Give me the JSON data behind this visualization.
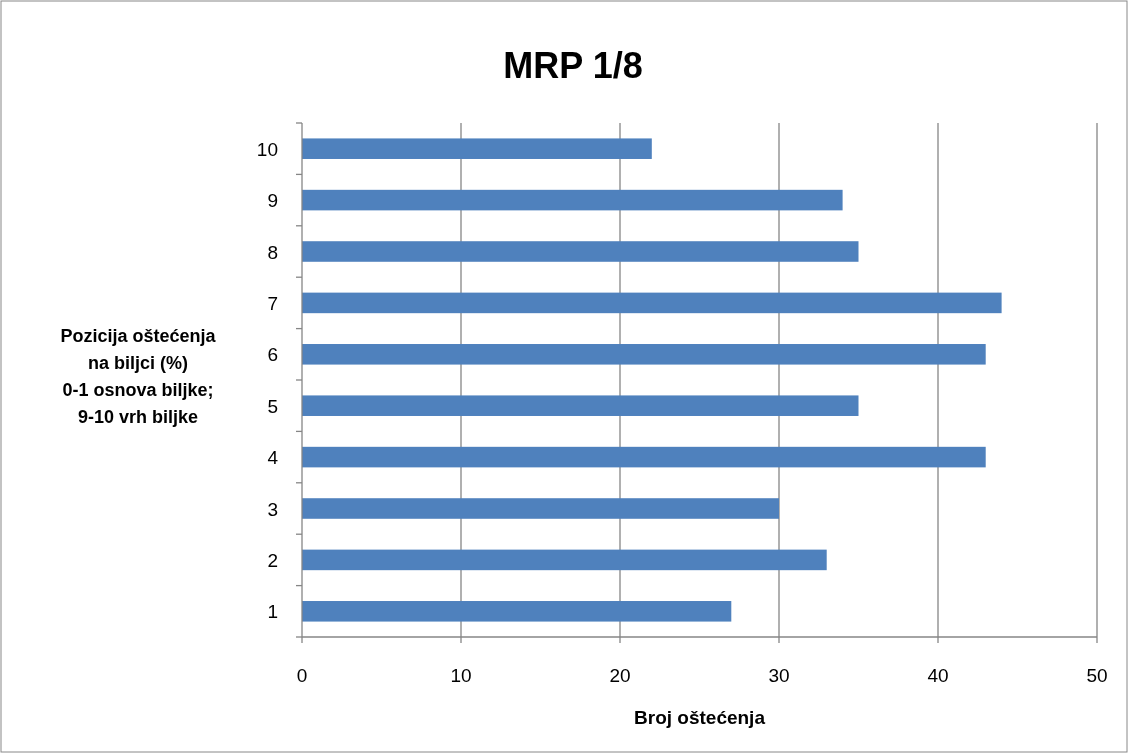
{
  "chart_data": {
    "type": "bar",
    "orientation": "horizontal",
    "title": "MRP 1/8",
    "categories": [
      "10",
      "9",
      "8",
      "7",
      "6",
      "5",
      "4",
      "3",
      "2",
      "1"
    ],
    "values": [
      22,
      34,
      35,
      44,
      43,
      35,
      43,
      30,
      33,
      27
    ],
    "color": "#4f81bd",
    "xlim": [
      0,
      50
    ],
    "xticks": [
      0,
      10,
      20,
      30,
      40,
      50
    ],
    "xlabel": "Broj oštećenja",
    "ylabel": "Pozicija oštećenja\nna biljci (%)\n0-1 osnova biljke;\n9-10 vrh biljke",
    "grid": "x"
  }
}
